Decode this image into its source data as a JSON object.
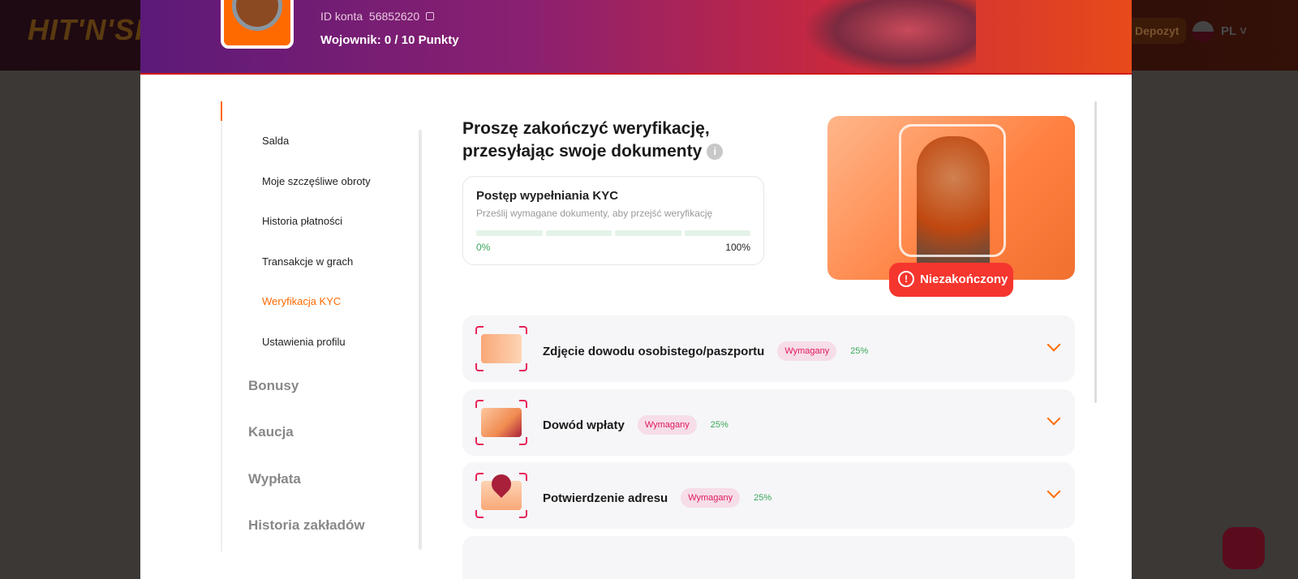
{
  "topbar": {
    "logo": "HIT'N'SPIN",
    "deposit_label": "Depozyt",
    "language": "PL"
  },
  "profile": {
    "account_id_label": "ID konta",
    "account_id": "56852620",
    "rank_text": "Wojownik: 0  / 10 Punkty"
  },
  "sidebar": {
    "items": [
      {
        "label": "Salda"
      },
      {
        "label": "Moje szczęśliwe obroty"
      },
      {
        "label": "Historia płatności"
      },
      {
        "label": "Transakcje w grach"
      },
      {
        "label": "Weryfikacja KYC",
        "active": true
      },
      {
        "label": "Ustawienia profilu"
      }
    ],
    "sections": [
      {
        "label": "Bonusy"
      },
      {
        "label": "Kaucja"
      },
      {
        "label": "Wypłata"
      },
      {
        "label": "Historia zakładów"
      }
    ]
  },
  "main": {
    "title_line1": "Proszę zakończyć weryfikację,",
    "title_line2": "przesyłając swoje dokumenty",
    "kyc": {
      "title": "Postęp wypełniania KYC",
      "subtitle": "Prześlij wymagane dokumenty, aby przejść weryfikację",
      "progress_percent": 0,
      "min_label": "0%",
      "max_label": "100%"
    },
    "status": {
      "label": "Niezakończony",
      "color": "#f5362e"
    },
    "documents": [
      {
        "title": "Zdjęcie dowodu osobistego/paszportu",
        "badge": "Wymagany",
        "percent": "25%",
        "icon": "id-card-icon"
      },
      {
        "title": "Dowód wpłaty",
        "badge": "Wymagany",
        "percent": "25%",
        "icon": "receipt-card-icon"
      },
      {
        "title": "Potwierdzenie adresu",
        "badge": "Wymagany",
        "percent": "25%",
        "icon": "map-pin-icon"
      }
    ]
  },
  "colors": {
    "accent": "#ff6a00",
    "required": "#e0185a",
    "success": "#3aa65a"
  }
}
